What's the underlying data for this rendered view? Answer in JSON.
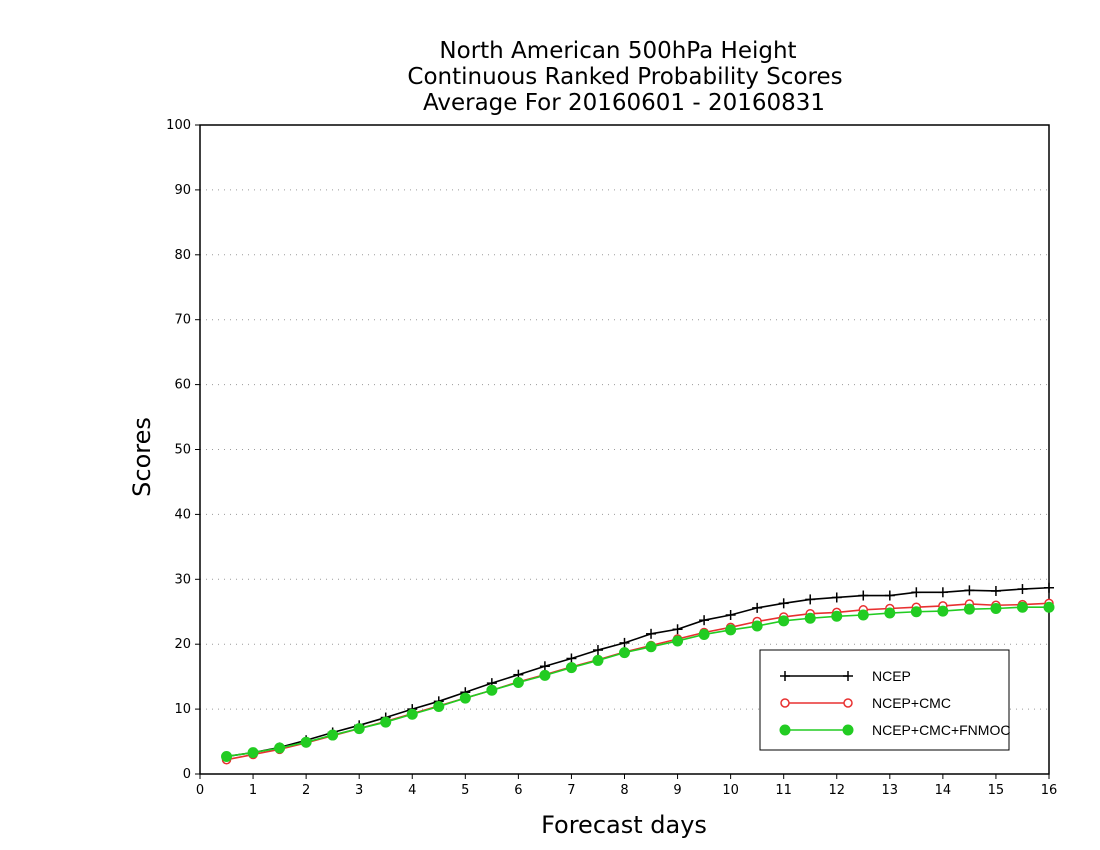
{
  "chart_data": {
    "type": "line",
    "title": [
      "North American 500hPa Height",
      "Continuous Ranked Probability Scores",
      "Average For 20160601 - 20160831"
    ],
    "xlabel": "Forecast days",
    "ylabel": "Scores",
    "xlim": [
      0,
      16
    ],
    "ylim": [
      0,
      100
    ],
    "x_ticks": [
      0,
      1,
      2,
      3,
      4,
      5,
      6,
      7,
      8,
      9,
      10,
      11,
      12,
      13,
      14,
      15,
      16
    ],
    "y_ticks": [
      0,
      10,
      20,
      30,
      40,
      50,
      60,
      70,
      80,
      90,
      100
    ],
    "grid": "horizontal dotted",
    "legend_position": "bottom-right",
    "x": [
      0.5,
      1.0,
      1.5,
      2.0,
      2.5,
      3.0,
      3.5,
      4.0,
      4.5,
      5.0,
      5.5,
      6.0,
      6.5,
      7.0,
      7.5,
      8.0,
      8.5,
      9.0,
      9.5,
      10.0,
      10.5,
      11.0,
      11.5,
      12.0,
      12.5,
      13.0,
      13.5,
      14.0,
      14.5,
      15.0,
      15.5,
      16.0
    ],
    "series": [
      {
        "name": "NCEP",
        "color": "#000000",
        "marker": "plus",
        "values": [
          2.7,
          3.3,
          4.1,
          5.2,
          6.4,
          7.5,
          8.7,
          10.0,
          11.2,
          12.6,
          14.0,
          15.3,
          16.6,
          17.8,
          19.1,
          20.2,
          21.6,
          22.3,
          23.7,
          24.5,
          25.6,
          26.3,
          26.9,
          27.2,
          27.5,
          27.5,
          28.0,
          28.0,
          28.3,
          28.2,
          28.5,
          28.7
        ]
      },
      {
        "name": "NCEP+CMC",
        "color": "#e83030",
        "marker": "open-circle",
        "values": [
          2.2,
          3.0,
          3.8,
          4.8,
          5.9,
          7.0,
          8.1,
          9.3,
          10.5,
          11.7,
          12.9,
          14.2,
          15.3,
          16.5,
          17.6,
          18.8,
          19.8,
          20.8,
          21.8,
          22.6,
          23.5,
          24.2,
          24.7,
          24.9,
          25.3,
          25.5,
          25.7,
          25.9,
          26.2,
          26.0,
          26.1,
          26.3
        ]
      },
      {
        "name": "NCEP+CMC+FNMOC",
        "color": "#22cc22",
        "marker": "filled-circle",
        "values": [
          2.7,
          3.3,
          4.0,
          4.9,
          6.0,
          7.0,
          8.0,
          9.2,
          10.4,
          11.7,
          12.9,
          14.1,
          15.2,
          16.4,
          17.5,
          18.7,
          19.6,
          20.5,
          21.5,
          22.2,
          22.8,
          23.6,
          24.0,
          24.3,
          24.5,
          24.8,
          25.0,
          25.1,
          25.4,
          25.5,
          25.7,
          25.7
        ]
      }
    ]
  }
}
